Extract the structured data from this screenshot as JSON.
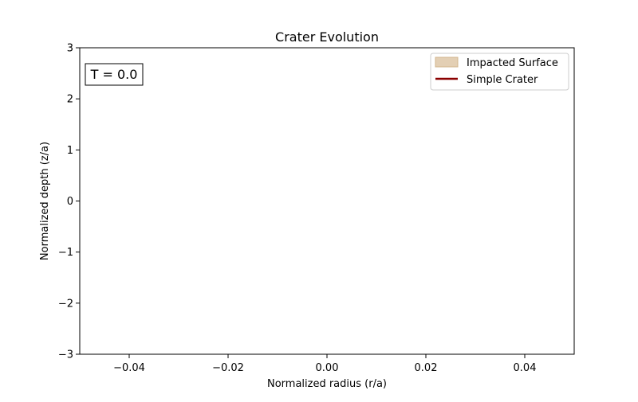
{
  "chart_data": {
    "type": "area",
    "title": "Crater Evolution",
    "xlabel": "Normalized radius (r/a)",
    "ylabel": "Normalized depth (z/a)",
    "xlim": [
      -0.05,
      0.05
    ],
    "ylim": [
      -3,
      3
    ],
    "xticks": [
      -0.04,
      -0.02,
      0.0,
      0.02,
      0.04
    ],
    "xtick_labels": [
      "−0.04",
      "−0.02",
      "0.00",
      "0.02",
      "0.04"
    ],
    "yticks": [
      -3,
      -2,
      -1,
      0,
      1,
      2,
      3
    ],
    "ytick_labels": [
      "−3",
      "−2",
      "−1",
      "0",
      "1",
      "2",
      "3"
    ],
    "grid": false,
    "legend_position": "top-right",
    "annotation": "T = 0.0",
    "series": [
      {
        "name": "Impacted Surface",
        "style": "fill",
        "color": "#e3cfb4",
        "edge_color": "#d2b48c",
        "x": [],
        "y": []
      },
      {
        "name": "Simple Crater",
        "style": "line",
        "color": "#8b0000",
        "x": [],
        "y": []
      }
    ]
  }
}
